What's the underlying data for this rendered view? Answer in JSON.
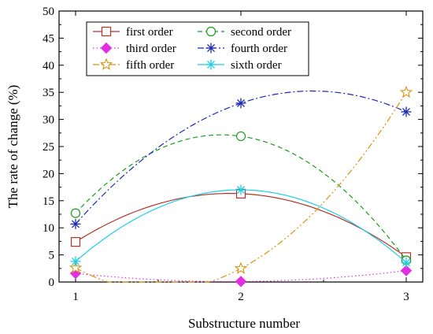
{
  "chart_data": {
    "type": "line",
    "xlabel": "Substructure number",
    "ylabel": "The rate of change (%)",
    "xlim": [
      0.9,
      3.1
    ],
    "ylim": [
      0,
      50
    ],
    "x_ticks": [
      1,
      2,
      3
    ],
    "y_ticks": [
      0,
      5,
      10,
      15,
      20,
      25,
      30,
      35,
      40,
      45,
      50
    ],
    "x": [
      1,
      2,
      3
    ],
    "grid": false,
    "legend_placement": "top-left, two columns, boxed",
    "series": [
      {
        "name": "first order",
        "values": [
          7.4,
          16.3,
          4.6
        ],
        "color": "#b5332a",
        "marker": "square-open",
        "dash": "solid"
      },
      {
        "name": "second order",
        "values": [
          12.7,
          26.9,
          4.0
        ],
        "color": "#1a9b1a",
        "marker": "circle-open",
        "dash": "dash"
      },
      {
        "name": "third order",
        "values": [
          1.6,
          0.1,
          2.1
        ],
        "color": "#e22ee2",
        "marker": "diamond-filled",
        "dash": "dot"
      },
      {
        "name": "fourth order",
        "values": [
          10.7,
          33.0,
          31.4
        ],
        "color": "#1a2bb5",
        "marker": "asterisk",
        "dash": "dashdot"
      },
      {
        "name": "fifth order",
        "values": [
          2.6,
          2.5,
          35.0
        ],
        "color": "#d9930f",
        "marker": "star-open",
        "dash": "dashdotdot"
      },
      {
        "name": "sixth order",
        "values": [
          3.8,
          17.0,
          3.6
        ],
        "color": "#1ccfe6",
        "marker": "asterisk",
        "dash": "solid"
      }
    ]
  }
}
